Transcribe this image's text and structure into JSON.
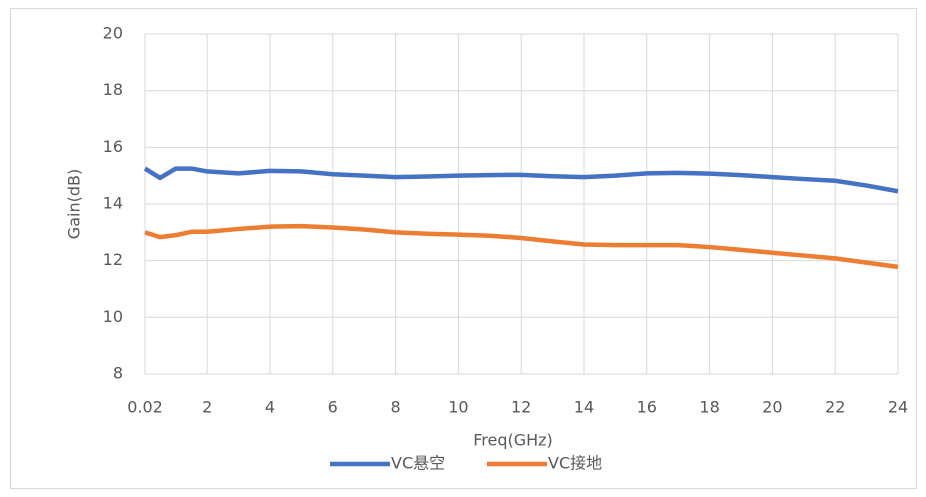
{
  "chart_data": {
    "type": "line",
    "x_label": "Freq(GHz)",
    "y_label": "Gain(dB)",
    "x": [
      0.02,
      0.5,
      1,
      1.5,
      2,
      3,
      4,
      5,
      6,
      7,
      8,
      9,
      10,
      11,
      12,
      13,
      14,
      15,
      16,
      17,
      18,
      19,
      20,
      21,
      22,
      23,
      24
    ],
    "series": [
      {
        "name": "VC悬空",
        "color": "#4472c4",
        "values": [
          15.25,
          14.92,
          15.25,
          15.25,
          15.15,
          15.08,
          15.17,
          15.15,
          15.05,
          15.0,
          14.95,
          14.97,
          15.0,
          15.02,
          15.03,
          14.98,
          14.95,
          15.0,
          15.08,
          15.1,
          15.07,
          15.02,
          14.95,
          14.88,
          14.82,
          14.65,
          14.45
        ]
      },
      {
        "name": "VC接地",
        "color": "#ed7d31",
        "values": [
          13.0,
          12.83,
          12.9,
          13.02,
          13.02,
          13.12,
          13.2,
          13.22,
          13.17,
          13.1,
          13.0,
          12.95,
          12.92,
          12.88,
          12.8,
          12.68,
          12.57,
          12.55,
          12.55,
          12.55,
          12.48,
          12.38,
          12.28,
          12.18,
          12.08,
          11.93,
          11.78
        ]
      }
    ],
    "xlim": [
      0.02,
      24
    ],
    "xticks": [
      0.02,
      2,
      4,
      6,
      8,
      10,
      12,
      14,
      16,
      18,
      20,
      22,
      24
    ],
    "ylim": [
      8,
      20
    ],
    "yticks": [
      8,
      10,
      12,
      14,
      16,
      18,
      20
    ],
    "grid": true,
    "legend": "bottom"
  }
}
